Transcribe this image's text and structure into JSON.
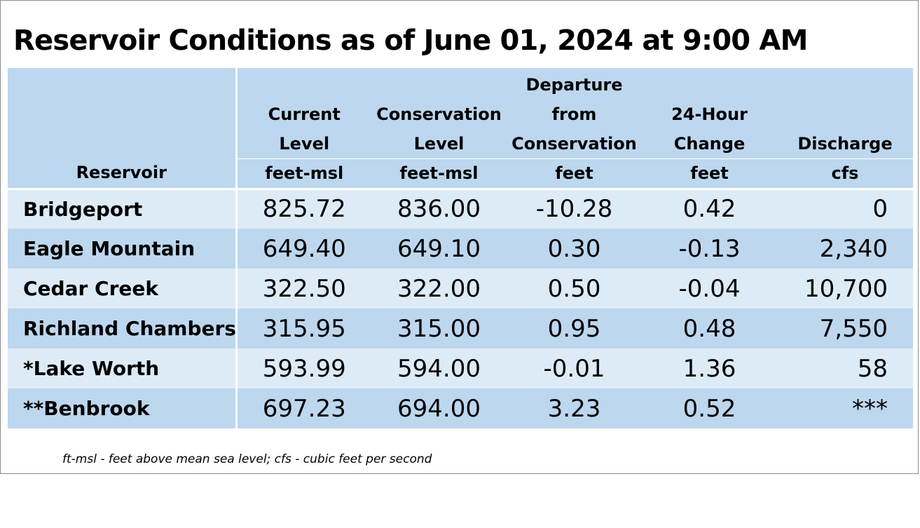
{
  "title": "Reservoir Conditions as of June 01, 2024 at 9:00 AM",
  "header": {
    "reservoir": "Reservoir",
    "current_level": [
      "Current",
      "Level"
    ],
    "conservation_level": [
      "Conservation",
      "Level"
    ],
    "departure": [
      "Departure",
      "from",
      "Conservation"
    ],
    "change_24h": [
      "24-Hour",
      "Change"
    ],
    "discharge": [
      "Discharge"
    ]
  },
  "units": {
    "reservoir": "",
    "current_level": "feet-msl",
    "conservation_level": "feet-msl",
    "departure": "feet",
    "change_24h": "feet",
    "discharge": "cfs"
  },
  "rows": [
    {
      "name": "Bridgeport",
      "current": "825.72",
      "conservation": "836.00",
      "departure": "-10.28",
      "change": "0.42",
      "discharge": "0"
    },
    {
      "name": "Eagle Mountain",
      "current": "649.40",
      "conservation": "649.10",
      "departure": "0.30",
      "change": "-0.13",
      "discharge": "2,340"
    },
    {
      "name": "Cedar Creek",
      "current": "322.50",
      "conservation": "322.00",
      "departure": "0.50",
      "change": "-0.04",
      "discharge": "10,700"
    },
    {
      "name": "Richland Chambers",
      "current": "315.95",
      "conservation": "315.00",
      "departure": "0.95",
      "change": "0.48",
      "discharge": "7,550"
    },
    {
      "name": "*Lake Worth",
      "current": "593.99",
      "conservation": "594.00",
      "departure": "-0.01",
      "change": "1.36",
      "discharge": "58"
    },
    {
      "name": "**Benbrook",
      "current": "697.23",
      "conservation": "694.00",
      "departure": "3.23",
      "change": "0.52",
      "discharge": "***"
    }
  ],
  "footnote": "ft-msl - feet above mean sea level; cfs - cubic feet per second",
  "colors": {
    "header_bg": "#bdd7ee",
    "row_light": "#ddebf7",
    "row_dark": "#bdd7ee"
  }
}
